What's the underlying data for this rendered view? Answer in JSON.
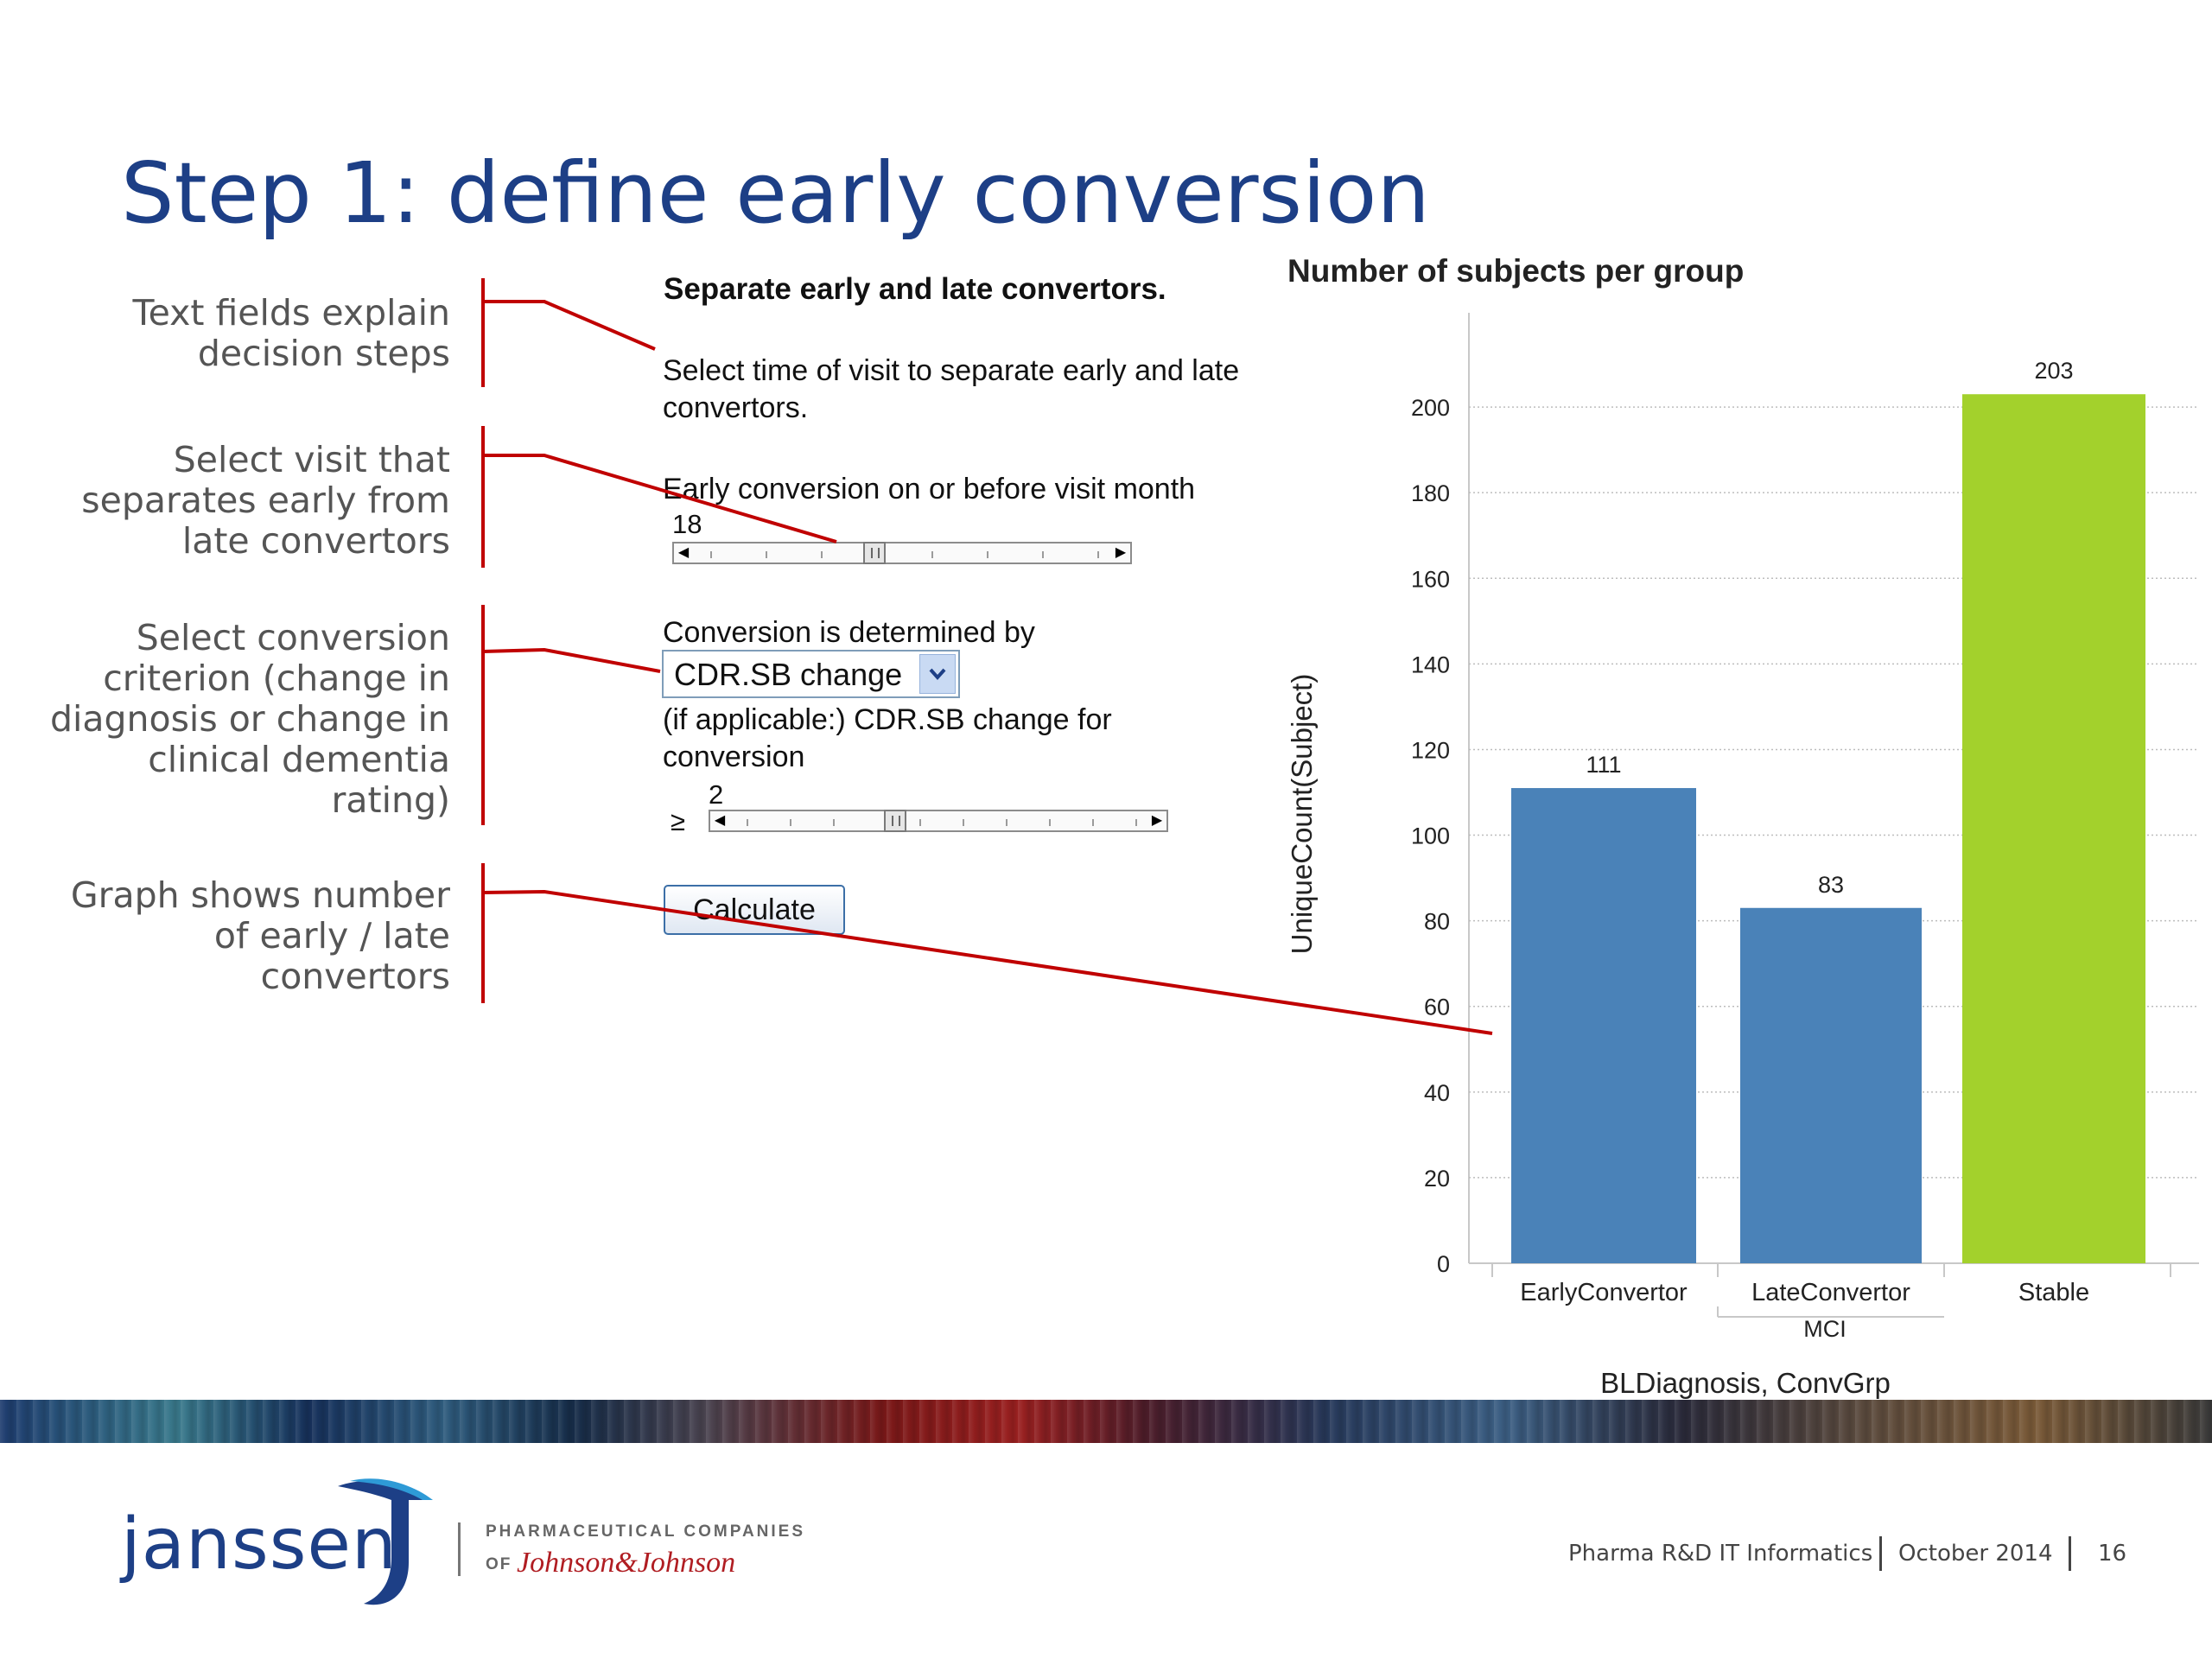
{
  "slide": {
    "title": "Step 1: define early conversion"
  },
  "annotations": [
    {
      "lines": [
        "Text fields explain",
        "decision steps"
      ]
    },
    {
      "lines": [
        "Select visit that",
        "separates early from",
        "late convertors"
      ]
    },
    {
      "lines": [
        "Select conversion",
        "criterion (change in",
        "diagnosis or change in",
        "clinical dementia",
        "rating)"
      ]
    },
    {
      "lines": [
        "Graph shows number",
        "of early / late",
        "convertors"
      ]
    }
  ],
  "panel": {
    "heading": "Separate early and late convertors.",
    "instruction_line1": "Select time of visit to separate early and late",
    "instruction_line2": "convertors.",
    "visit_label": "Early conversion on or before visit month",
    "visit_value": "18",
    "visit_slider_fraction": 0.43,
    "criterion_label": "Conversion is determined by",
    "criterion_value": "CDR.SB change",
    "threshold_label_line1": "(if applicable:) CDR.SB change for",
    "threshold_label_line2": "conversion",
    "threshold_operator": "≥",
    "threshold_value": "2",
    "threshold_slider_fraction": 0.39,
    "calculate_label": "Calculate"
  },
  "chart_data": {
    "type": "bar",
    "title": "Number of subjects per group",
    "categories": [
      "EarlyConvertor",
      "LateConvertor",
      "Stable"
    ],
    "values": [
      111,
      83,
      203
    ],
    "data_labels": [
      "111",
      "83",
      "203"
    ],
    "group_label": "MCI",
    "bar_colors": [
      "#4a82b8",
      "#4a82b8",
      "#a3d12c"
    ],
    "xlabel": "BLDiagnosis, ConvGrp",
    "ylabel": "UniqueCount(Subject)",
    "ylim": [
      0,
      220
    ],
    "yticks": [
      0,
      20,
      40,
      60,
      80,
      100,
      120,
      140,
      160,
      180,
      200
    ],
    "grid": true,
    "legend": "none"
  },
  "footer": {
    "logo": "janssen",
    "tagline_top": "PHARMACEUTICAL COMPANIES",
    "tagline_of": "OF",
    "tagline_brand": "Johnson&Johnson",
    "department": "Pharma R&D IT Informatics",
    "date": "October 2014",
    "page_number": "16"
  },
  "colors": {
    "title": "#1d3f86",
    "callout": "#c00000",
    "bar_primary": "#4a82b8",
    "bar_stable": "#a3d12c"
  }
}
